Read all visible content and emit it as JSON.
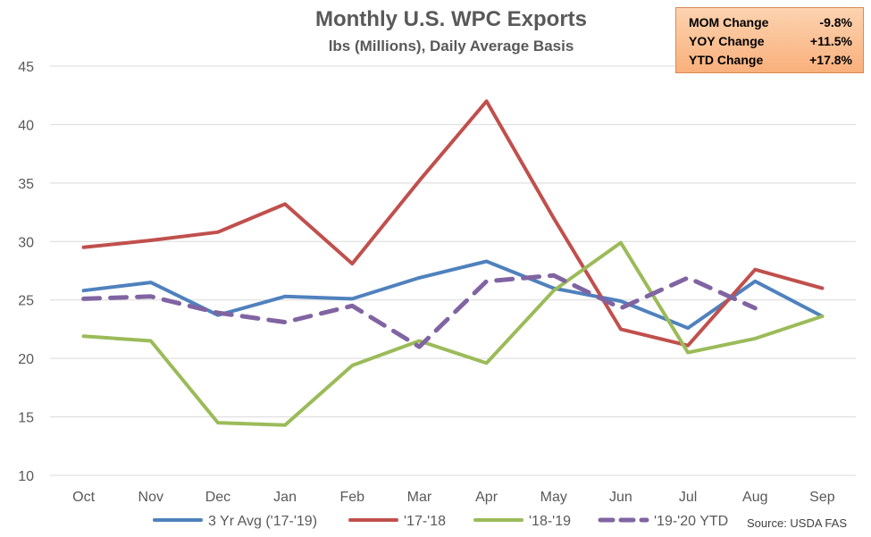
{
  "chart_data": {
    "type": "line",
    "title": "Monthly U.S. WPC Exports",
    "subtitle": "lbs (Millions), Daily Average Basis",
    "categories": [
      "Oct",
      "Nov",
      "Dec",
      "Jan",
      "Feb",
      "Mar",
      "Apr",
      "May",
      "Jun",
      "Jul",
      "Aug",
      "Sep"
    ],
    "ylim": [
      10,
      45
    ],
    "yticks": [
      10,
      15,
      20,
      25,
      30,
      35,
      40,
      45
    ],
    "grid": true,
    "legend": "bottom",
    "series": [
      {
        "name": "3 Yr Avg ('17-'19)",
        "color": "#4f81bd",
        "dash": false,
        "values": [
          25.8,
          26.5,
          23.7,
          25.3,
          25.1,
          26.9,
          28.3,
          26.0,
          24.9,
          22.6,
          26.6,
          23.6
        ]
      },
      {
        "name": "'17-'18",
        "color": "#c0504d",
        "dash": false,
        "values": [
          29.5,
          30.1,
          30.8,
          33.2,
          28.1,
          35.2,
          42.0,
          32.0,
          22.5,
          21.1,
          27.6,
          26.0
        ]
      },
      {
        "name": "'18-'19",
        "color": "#9bbb59",
        "dash": false,
        "values": [
          21.9,
          21.5,
          14.5,
          14.3,
          19.4,
          21.5,
          19.6,
          25.8,
          29.9,
          20.5,
          21.7,
          23.6
        ]
      },
      {
        "name": "'19-'20 YTD",
        "color": "#8064a2",
        "dash": true,
        "values": [
          25.1,
          25.3,
          23.9,
          23.1,
          24.5,
          21.0,
          26.6,
          27.1,
          24.3,
          26.9,
          24.3,
          null
        ]
      }
    ]
  },
  "stats": [
    {
      "label": "MOM Change",
      "value": "-9.8%"
    },
    {
      "label": "YOY Change",
      "value": "+11.5%"
    },
    {
      "label": "YTD Change",
      "value": "+17.8%"
    }
  ],
  "source": "Source: USDA FAS"
}
